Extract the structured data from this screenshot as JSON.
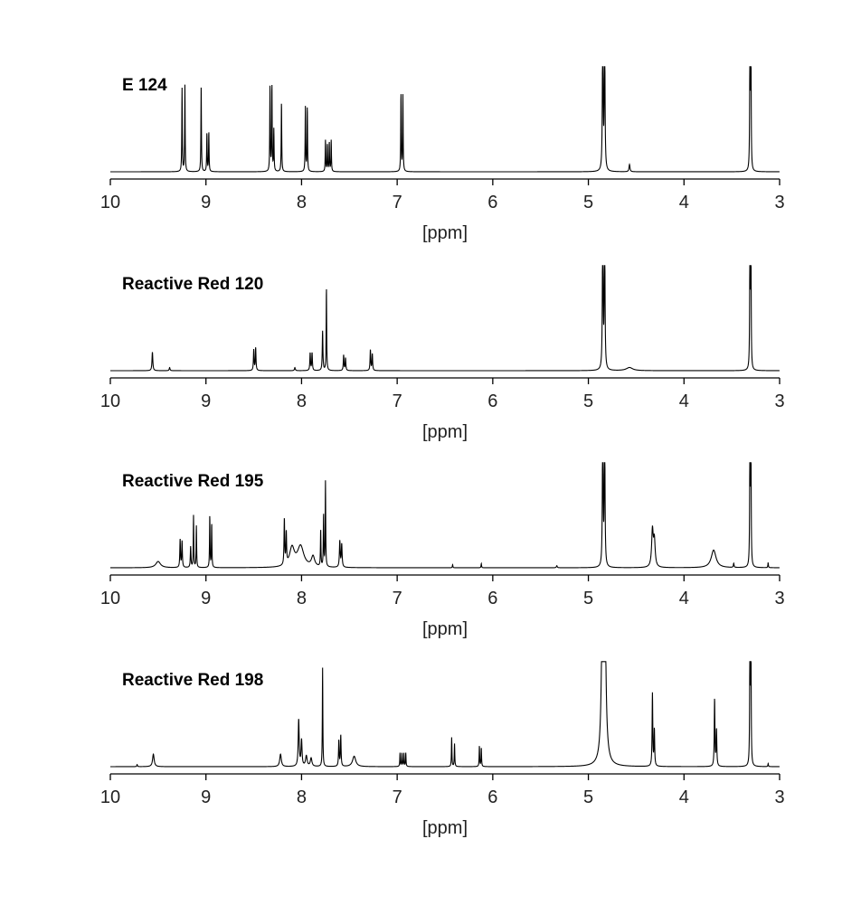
{
  "chart_data": [
    {
      "type": "line",
      "title": "E 124",
      "xlabel": "[ppm]",
      "xlim": [
        10,
        3
      ],
      "x_reversed": true,
      "ticks": [
        "10",
        "9",
        "8",
        "7",
        "6",
        "5",
        "4",
        "3"
      ],
      "grid": false,
      "color": "#000000",
      "peaks": [
        [
          9.25,
          0.8,
          0.003
        ],
        [
          9.22,
          0.83,
          0.003
        ],
        [
          9.05,
          0.83,
          0.003
        ],
        [
          8.99,
          0.37,
          0.003
        ],
        [
          8.97,
          0.38,
          0.003
        ],
        [
          8.33,
          0.83,
          0.003
        ],
        [
          8.31,
          0.83,
          0.003
        ],
        [
          8.29,
          0.4,
          0.003
        ],
        [
          8.21,
          0.67,
          0.003
        ],
        [
          7.96,
          0.62,
          0.003
        ],
        [
          7.94,
          0.62,
          0.003
        ],
        [
          7.75,
          0.3,
          0.003
        ],
        [
          7.73,
          0.26,
          0.003
        ],
        [
          7.71,
          0.28,
          0.003
        ],
        [
          7.69,
          0.3,
          0.003
        ],
        [
          6.96,
          0.75,
          0.003
        ],
        [
          6.94,
          0.73,
          0.003
        ],
        [
          4.85,
          1.6,
          0.004
        ],
        [
          4.83,
          1.6,
          0.004
        ],
        [
          4.57,
          0.07,
          0.006
        ],
        [
          3.31,
          1.6,
          0.003
        ],
        [
          3.3,
          1.3,
          0.003
        ]
      ]
    },
    {
      "type": "line",
      "title": "Reactive Red 120",
      "xlabel": "[ppm]",
      "xlim": [
        10,
        3
      ],
      "x_reversed": true,
      "ticks": [
        "10",
        "9",
        "8",
        "7",
        "6",
        "5",
        "4",
        "3"
      ],
      "grid": false,
      "color": "#000000",
      "peaks": [
        [
          9.56,
          0.18,
          0.005
        ],
        [
          9.38,
          0.03,
          0.005
        ],
        [
          8.5,
          0.2,
          0.004
        ],
        [
          8.48,
          0.22,
          0.004
        ],
        [
          8.07,
          0.03,
          0.005
        ],
        [
          7.91,
          0.17,
          0.004
        ],
        [
          7.89,
          0.17,
          0.004
        ],
        [
          7.78,
          0.38,
          0.004
        ],
        [
          7.74,
          0.8,
          0.003
        ],
        [
          7.56,
          0.15,
          0.004
        ],
        [
          7.54,
          0.12,
          0.004
        ],
        [
          7.28,
          0.2,
          0.004
        ],
        [
          7.26,
          0.16,
          0.004
        ],
        [
          4.85,
          1.6,
          0.004
        ],
        [
          4.83,
          1.6,
          0.004
        ],
        [
          4.57,
          0.03,
          0.04
        ],
        [
          3.31,
          1.6,
          0.003
        ],
        [
          3.3,
          1.3,
          0.003
        ]
      ]
    },
    {
      "type": "line",
      "title": "Reactive Red 195",
      "xlabel": "[ppm]",
      "xlim": [
        10,
        3
      ],
      "x_reversed": true,
      "ticks": [
        "10",
        "9",
        "8",
        "7",
        "6",
        "5",
        "4",
        "3"
      ],
      "grid": false,
      "color": "#000000",
      "peaks": [
        [
          9.5,
          0.06,
          0.03
        ],
        [
          9.27,
          0.27,
          0.004
        ],
        [
          9.25,
          0.25,
          0.004
        ],
        [
          9.16,
          0.2,
          0.004
        ],
        [
          9.13,
          0.5,
          0.003
        ],
        [
          9.1,
          0.4,
          0.003
        ],
        [
          8.96,
          0.5,
          0.003
        ],
        [
          8.94,
          0.42,
          0.003
        ],
        [
          8.18,
          0.44,
          0.004
        ],
        [
          8.16,
          0.3,
          0.004
        ],
        [
          8.1,
          0.18,
          0.03
        ],
        [
          8.01,
          0.2,
          0.04
        ],
        [
          7.88,
          0.1,
          0.02
        ],
        [
          7.8,
          0.35,
          0.003
        ],
        [
          7.77,
          0.5,
          0.003
        ],
        [
          7.75,
          0.82,
          0.003
        ],
        [
          7.6,
          0.25,
          0.005
        ],
        [
          7.58,
          0.22,
          0.005
        ],
        [
          6.42,
          0.03,
          0.003
        ],
        [
          6.12,
          0.04,
          0.003
        ],
        [
          5.33,
          0.02,
          0.005
        ],
        [
          4.85,
          1.6,
          0.004
        ],
        [
          4.83,
          1.6,
          0.004
        ],
        [
          4.33,
          0.35,
          0.01
        ],
        [
          4.31,
          0.25,
          0.01
        ],
        [
          3.69,
          0.17,
          0.03
        ],
        [
          3.48,
          0.04,
          0.004
        ],
        [
          3.31,
          1.6,
          0.003
        ],
        [
          3.3,
          1.3,
          0.003
        ],
        [
          3.12,
          0.05,
          0.003
        ]
      ]
    },
    {
      "type": "line",
      "title": "Reactive Red 198",
      "xlabel": "[ppm]",
      "xlim": [
        10,
        3
      ],
      "x_reversed": true,
      "ticks": [
        "10",
        "9",
        "8",
        "7",
        "6",
        "5",
        "4",
        "3"
      ],
      "grid": false,
      "color": "#000000",
      "peaks": [
        [
          9.72,
          0.02,
          0.004
        ],
        [
          9.55,
          0.12,
          0.01
        ],
        [
          8.22,
          0.12,
          0.01
        ],
        [
          8.03,
          0.45,
          0.006
        ],
        [
          8.0,
          0.25,
          0.006
        ],
        [
          7.95,
          0.1,
          0.01
        ],
        [
          7.9,
          0.08,
          0.01
        ],
        [
          7.78,
          0.95,
          0.003
        ],
        [
          7.61,
          0.25,
          0.004
        ],
        [
          7.59,
          0.3,
          0.004
        ],
        [
          7.45,
          0.1,
          0.02
        ],
        [
          6.97,
          0.13,
          0.003
        ],
        [
          6.95,
          0.13,
          0.003
        ],
        [
          6.93,
          0.13,
          0.003
        ],
        [
          6.91,
          0.13,
          0.003
        ],
        [
          6.43,
          0.28,
          0.003
        ],
        [
          6.4,
          0.22,
          0.003
        ],
        [
          6.14,
          0.2,
          0.003
        ],
        [
          6.12,
          0.18,
          0.003
        ],
        [
          4.85,
          1.8,
          0.012
        ],
        [
          4.83,
          1.8,
          0.012
        ],
        [
          4.33,
          0.7,
          0.004
        ],
        [
          4.31,
          0.35,
          0.004
        ],
        [
          3.68,
          0.65,
          0.004
        ],
        [
          3.66,
          0.35,
          0.004
        ],
        [
          3.31,
          1.6,
          0.003
        ],
        [
          3.3,
          1.3,
          0.003
        ],
        [
          3.12,
          0.03,
          0.003
        ]
      ]
    }
  ]
}
